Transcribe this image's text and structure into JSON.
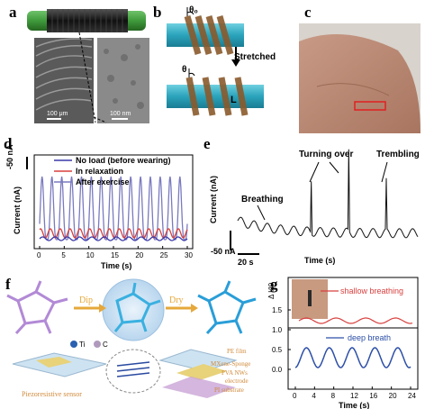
{
  "panels": {
    "a": "a",
    "b": "b",
    "c": "c",
    "d": "d",
    "e": "e",
    "f": "f",
    "g": "g"
  },
  "panel_a": {
    "scale_left": "100 μm",
    "scale_right": "100 nm"
  },
  "panel_b": {
    "theta0": "θ₀",
    "theta": "θ",
    "stretched": "Stretched",
    "L": "L"
  },
  "panel_d": {
    "ylabel": "Current (nA)",
    "scale": "-50 nA",
    "xlabel": "Time (s)",
    "xticks": [
      "0",
      "5",
      "10",
      "15",
      "20",
      "25",
      "30"
    ],
    "legend": [
      "No load (before wearing)",
      "In relaxation",
      "After exercise"
    ],
    "colors": {
      "noload": "#3a3aa8",
      "relax": "#d8403f",
      "exercise": "#7a7ac0"
    }
  },
  "panel_e": {
    "ylabel": "Current (nA)",
    "xlabel": "Time (s)",
    "scale_y": "-50 nA",
    "scale_x": "20 s",
    "ann": {
      "breathing": "Breathing",
      "turning": "Turning over",
      "trembling": "Trembling"
    }
  },
  "panel_f": {
    "dip": "Dip",
    "dry": "Dry",
    "ti": "Ti",
    "c": "C",
    "sensor": "Piezoresistive sensor",
    "layers": [
      "PE film",
      "MXene-Sponge",
      "PVA NWs",
      "electrode",
      "PI substrate"
    ]
  },
  "panel_g": {
    "ylabel": "Δ I/I0",
    "xlabel": "Time (s)",
    "shallow": "shallow breathing",
    "deep": "deep breath",
    "yticks": [
      "1.5",
      "1.0",
      "0.5",
      "0.0"
    ],
    "xticks": [
      "0",
      "4",
      "8",
      "12",
      "16",
      "20",
      "24"
    ],
    "colors": {
      "shallow": "#d8403f",
      "deep": "#2d4fa8"
    }
  }
}
